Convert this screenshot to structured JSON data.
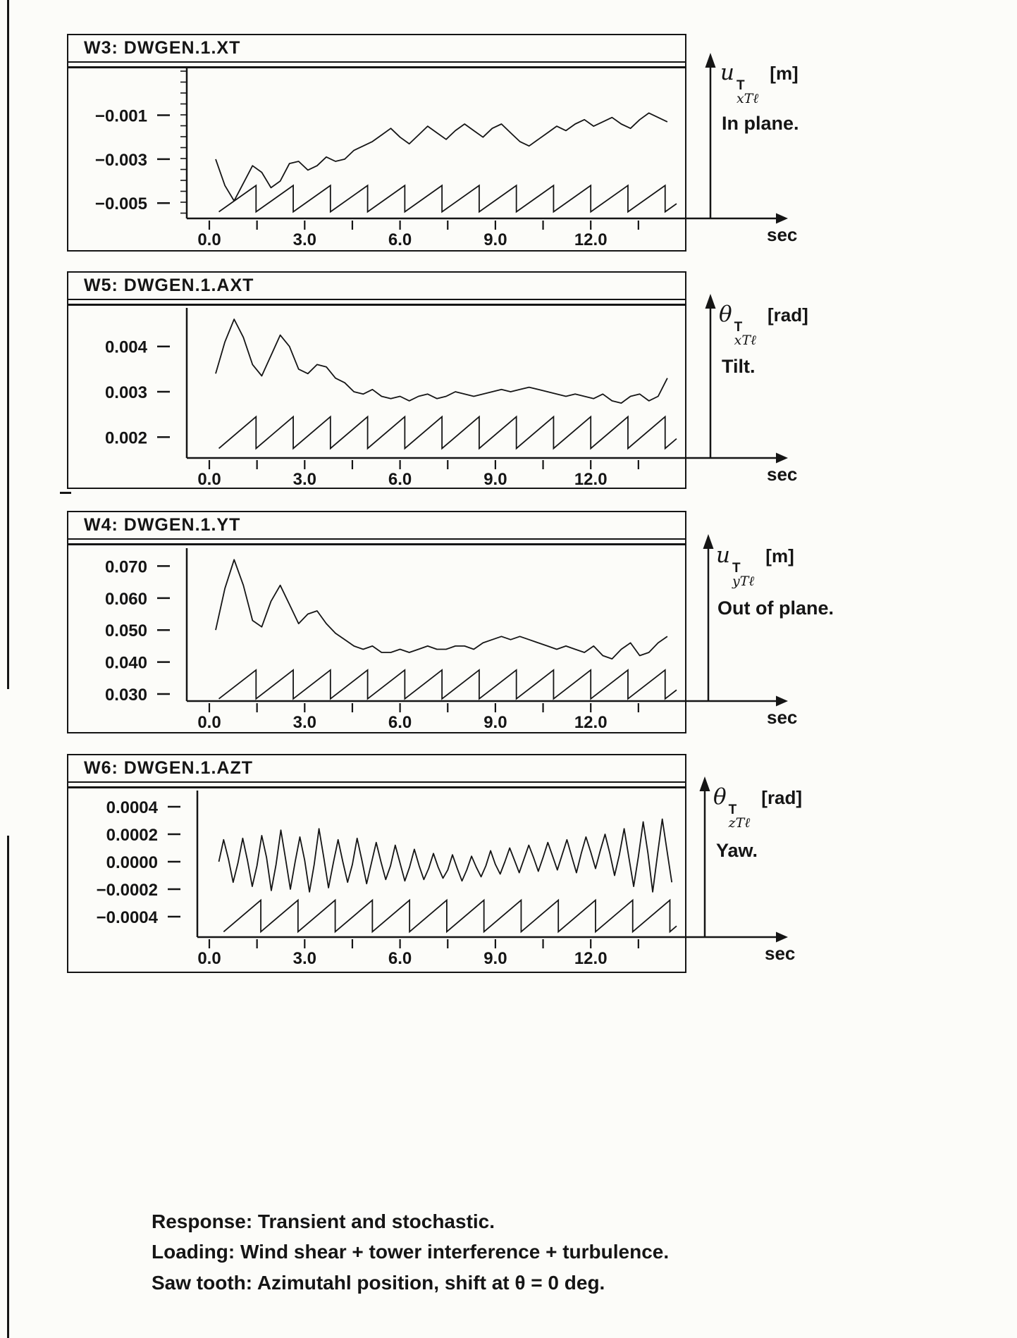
{
  "page": {
    "background": "#fcfcf9",
    "ink": "#151515"
  },
  "panels": [
    {
      "id": "W3",
      "title": "W3: DWGEN.1.XT",
      "axis_var": "u",
      "axis_sup": "T",
      "axis_sub": "xTℓ",
      "axis_unit": "[m]",
      "description": "In plane.",
      "x_unit": "sec"
    },
    {
      "id": "W5",
      "title": "W5: DWGEN.1.AXT",
      "axis_var": "θ",
      "axis_sup": "T",
      "axis_sub": "xTℓ",
      "axis_unit": "[rad]",
      "description": "Tilt.",
      "x_unit": "sec"
    },
    {
      "id": "W4",
      "title": "W4: DWGEN.1.YT",
      "axis_var": "u",
      "axis_sup": "T",
      "axis_sub": "yTℓ",
      "axis_unit": "[m]",
      "description": "Out of plane.",
      "x_unit": "sec"
    },
    {
      "id": "W6",
      "title": "W6: DWGEN.1.AZT",
      "axis_var": "θ",
      "axis_sup": "T",
      "axis_sub": "zTℓ",
      "axis_unit": "[rad]",
      "description": "Yaw.",
      "x_unit": "sec"
    }
  ],
  "caption": {
    "lines": [
      "Response: Transient and stochastic.",
      "Loading: Wind shear + tower interference + turbulence.",
      "Saw tooth: Azimutahl position, shift at θ = 0 deg."
    ]
  },
  "chart_data": [
    {
      "type": "line",
      "title": "W3: DWGEN.1.XT",
      "xlabel": "sec",
      "ylabel": "u_xTl^T [m]  In plane.",
      "xlim": [
        0,
        14.8
      ],
      "ylim": [
        -0.0057,
        0.0012
      ],
      "xticks": [
        0,
        3,
        6,
        9,
        12
      ],
      "xtick_labels": [
        "0.0",
        "3.0",
        "6.0",
        "9.0",
        "12.0"
      ],
      "xtick_minor_step": 1.5,
      "yticks": [
        -0.001,
        -0.003,
        -0.005
      ],
      "ytick_labels": [
        "−0.001",
        "−0.003",
        "−0.005"
      ],
      "grid": false,
      "series": [
        {
          "name": "in-plane-response",
          "x0": 0.2,
          "dx": 0.29,
          "scale": 0.001,
          "values": [
            -3.0,
            -4.2,
            -4.9,
            -4.1,
            -3.3,
            -3.6,
            -4.3,
            -4.0,
            -3.2,
            -3.1,
            -3.5,
            -3.3,
            -2.9,
            -3.1,
            -3.0,
            -2.6,
            -2.4,
            -2.2,
            -1.9,
            -1.6,
            -2.0,
            -2.3,
            -1.9,
            -1.5,
            -1.8,
            -2.1,
            -1.7,
            -1.4,
            -1.7,
            -2.0,
            -1.6,
            -1.4,
            -1.8,
            -2.2,
            -2.4,
            -2.1,
            -1.8,
            -1.5,
            -1.7,
            -1.4,
            -1.2,
            -1.5,
            -1.3,
            -1.1,
            -1.4,
            -1.6,
            -1.2,
            -0.9,
            -1.1,
            -1.3
          ]
        },
        {
          "name": "azimuth-sawtooth",
          "sawtooth": {
            "start": 0.3,
            "period": 1.17,
            "end": 14.7,
            "min": -0.0054,
            "max": -0.0042
          }
        }
      ]
    },
    {
      "type": "line",
      "title": "W5: DWGEN.1.AXT",
      "xlabel": "sec",
      "ylabel": "theta_xTl^T [rad]  Tilt.",
      "xlim": [
        0,
        14.8
      ],
      "ylim": [
        0.00154,
        0.00485
      ],
      "xticks": [
        0,
        3,
        6,
        9,
        12
      ],
      "xtick_labels": [
        "0.0",
        "3.0",
        "6.0",
        "9.0",
        "12.0"
      ],
      "xtick_minor_step": 1.5,
      "yticks": [
        0.004,
        0.003,
        0.002
      ],
      "ytick_labels": [
        "0.004",
        "0.003",
        "0.002"
      ],
      "grid": false,
      "series": [
        {
          "name": "tilt-response",
          "x0": 0.2,
          "dx": 0.29,
          "scale": 0.001,
          "values": [
            3.4,
            4.1,
            4.6,
            4.2,
            3.6,
            3.35,
            3.8,
            4.25,
            4.0,
            3.5,
            3.4,
            3.6,
            3.55,
            3.3,
            3.2,
            3.0,
            2.95,
            3.05,
            2.9,
            2.85,
            2.9,
            2.8,
            2.9,
            2.95,
            2.85,
            2.9,
            3.0,
            2.95,
            2.9,
            2.95,
            3.0,
            3.05,
            3.0,
            3.05,
            3.1,
            3.05,
            3.0,
            2.95,
            2.9,
            2.95,
            2.9,
            2.85,
            2.95,
            2.8,
            2.75,
            2.9,
            2.95,
            2.8,
            2.9,
            3.3
          ]
        },
        {
          "name": "azimuth-sawtooth",
          "sawtooth": {
            "start": 0.3,
            "period": 1.17,
            "end": 14.7,
            "min": 0.00175,
            "max": 0.00245
          }
        }
      ]
    },
    {
      "type": "line",
      "title": "W4: DWGEN.1.YT",
      "xlabel": "sec",
      "ylabel": "u_yTl^T [m]  Out of plane.",
      "xlim": [
        0,
        14.8
      ],
      "ylim": [
        0.0278,
        0.0756
      ],
      "xticks": [
        0,
        3,
        6,
        9,
        12
      ],
      "xtick_labels": [
        "0.0",
        "3.0",
        "6.0",
        "9.0",
        "12.0"
      ],
      "xtick_minor_step": 1.5,
      "yticks": [
        0.07,
        0.06,
        0.05,
        0.04,
        0.03
      ],
      "ytick_labels": [
        "0.070",
        "0.060",
        "0.050",
        "0.040",
        "0.030"
      ],
      "grid": false,
      "series": [
        {
          "name": "out-of-plane-response",
          "x0": 0.2,
          "dx": 0.29,
          "scale": 0.01,
          "values": [
            5.0,
            6.3,
            7.2,
            6.4,
            5.3,
            5.1,
            5.9,
            6.4,
            5.8,
            5.2,
            5.5,
            5.6,
            5.2,
            4.9,
            4.7,
            4.5,
            4.4,
            4.5,
            4.3,
            4.3,
            4.4,
            4.3,
            4.4,
            4.5,
            4.4,
            4.4,
            4.5,
            4.5,
            4.4,
            4.6,
            4.7,
            4.8,
            4.7,
            4.8,
            4.7,
            4.6,
            4.5,
            4.4,
            4.5,
            4.4,
            4.3,
            4.5,
            4.2,
            4.1,
            4.4,
            4.6,
            4.2,
            4.3,
            4.6,
            4.8
          ]
        },
        {
          "name": "azimuth-sawtooth",
          "sawtooth": {
            "start": 0.3,
            "period": 1.17,
            "end": 14.7,
            "min": 0.0285,
            "max": 0.0375
          }
        }
      ]
    },
    {
      "type": "line",
      "title": "W6: DWGEN.1.AZT",
      "xlabel": "sec",
      "ylabel": "theta_zTl^T [rad]  Yaw.",
      "xlim": [
        0,
        14.8
      ],
      "ylim": [
        -0.000549,
        0.000518
      ],
      "xticks": [
        0,
        3,
        6,
        9,
        12
      ],
      "xtick_labels": [
        "0.0",
        "3.0",
        "6.0",
        "9.0",
        "12.0"
      ],
      "xtick_minor_step": 1.5,
      "yticks": [
        0.0004,
        0.0002,
        0.0,
        -0.0002,
        -0.0004
      ],
      "ytick_labels": [
        "0.0004",
        "0.0002",
        "0.0000",
        "−0.0002",
        "−0.0004"
      ],
      "grid": false,
      "series": [
        {
          "name": "yaw-response",
          "x0": 0.3,
          "dx": 0.15,
          "scale": 0.0001,
          "values": [
            0.0,
            1.6,
            0.2,
            -1.5,
            -0.1,
            1.7,
            0.1,
            -1.8,
            -0.3,
            1.9,
            0.3,
            -2.1,
            -0.2,
            2.3,
            0.2,
            -2.0,
            0.0,
            1.8,
            0.1,
            -2.2,
            -0.2,
            2.4,
            0.3,
            -1.9,
            -0.1,
            1.6,
            0.0,
            -1.5,
            -0.2,
            1.7,
            0.1,
            -1.6,
            -0.1,
            1.4,
            0.0,
            -1.3,
            -0.3,
            1.2,
            -0.1,
            -1.4,
            -0.4,
            0.9,
            -0.3,
            -1.3,
            -0.5,
            0.6,
            -0.4,
            -1.2,
            -0.6,
            0.5,
            -0.5,
            -1.4,
            -0.6,
            0.4,
            -0.4,
            -1.1,
            -0.3,
            0.8,
            -0.2,
            -0.9,
            0.0,
            1.0,
            0.1,
            -0.8,
            0.2,
            1.2,
            0.3,
            -0.7,
            0.3,
            1.4,
            0.4,
            -0.6,
            0.5,
            1.6,
            0.4,
            -0.8,
            0.6,
            1.8,
            0.7,
            -0.5,
            0.8,
            2.0,
            0.6,
            -1.0,
            0.5,
            2.4,
            0.3,
            -1.8,
            0.4,
            2.9,
            0.6,
            -2.2,
            0.5,
            3.1,
            0.8,
            -1.5
          ]
        },
        {
          "name": "azimuth-sawtooth",
          "sawtooth": {
            "start": 0.45,
            "period": 1.17,
            "end": 14.7,
            "min": -0.00051,
            "max": -0.00028
          }
        }
      ]
    }
  ]
}
